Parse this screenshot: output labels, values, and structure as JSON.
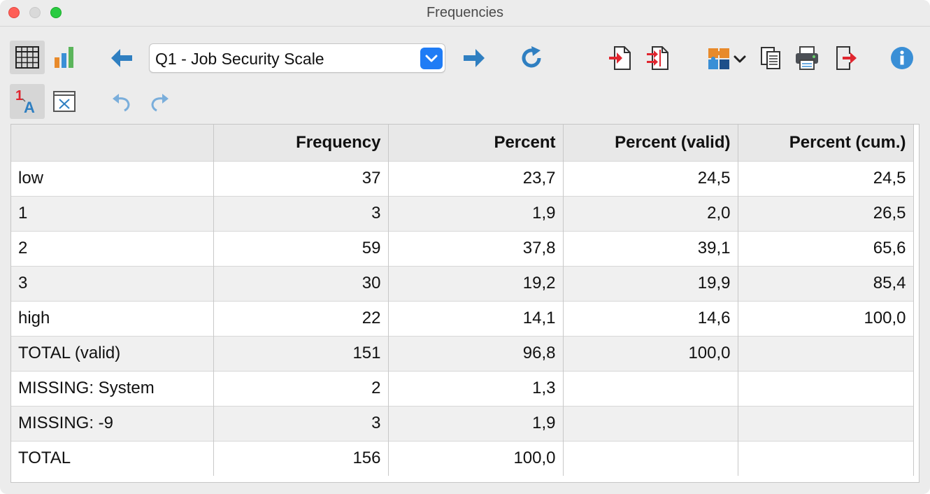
{
  "window": {
    "title": "Frequencies"
  },
  "toolbar": {
    "variable_select": {
      "value": "Q1 - Job Security Scale"
    }
  },
  "table": {
    "headers": [
      "",
      "Frequency",
      "Percent",
      "Percent (valid)",
      "Percent (cum.)"
    ],
    "rows": [
      [
        "low",
        "37",
        "23,7",
        "24,5",
        "24,5"
      ],
      [
        "1",
        "3",
        "1,9",
        "2,0",
        "26,5"
      ],
      [
        "2",
        "59",
        "37,8",
        "39,1",
        "65,6"
      ],
      [
        "3",
        "30",
        "19,2",
        "19,9",
        "85,4"
      ],
      [
        "high",
        "22",
        "14,1",
        "14,6",
        "100,0"
      ],
      [
        "TOTAL (valid)",
        "151",
        "96,8",
        "100,0",
        ""
      ],
      [
        "MISSING: System",
        "2",
        "1,3",
        "",
        ""
      ],
      [
        "MISSING: -9",
        "3",
        "1,9",
        "",
        ""
      ],
      [
        "TOTAL",
        "156",
        "100,0",
        "",
        ""
      ]
    ]
  },
  "colors": {
    "accent_blue": "#2f7fc1",
    "red": "#e0262f",
    "select_blue": "#1f7cf5"
  }
}
